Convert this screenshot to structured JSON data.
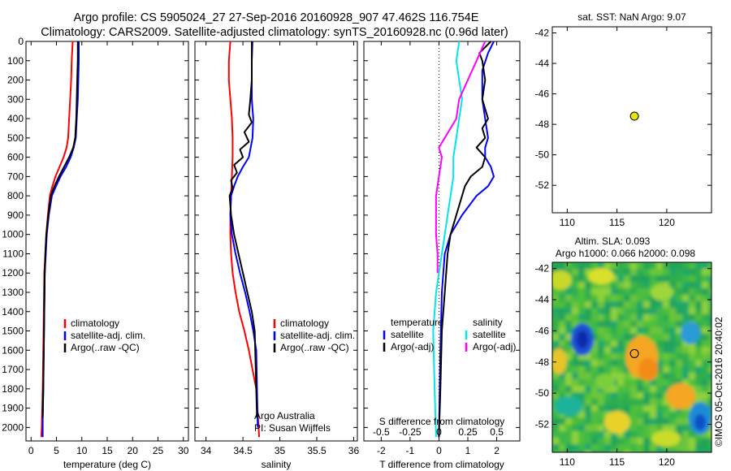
{
  "title_line1": "Argo profile: CS 5905024_27 27-Sep-2016 20160928_907 47.462S 116.754E",
  "title_line2": "Climatology: CARS2009. Satellite-adjusted climatology: synTS_20160928.nc (0.96d later)",
  "colors": {
    "climatology": "#ff0000",
    "satellite": "#0000ff",
    "argo": "#000000",
    "cyan": "#00e5ee",
    "magenta": "#ff00ff",
    "marker": "#e6e600"
  },
  "attribution": "Argo Australia",
  "pi": "PI: Susan Wijffels",
  "stamp": "©IMOS 05-Oct-2016 20:40:02",
  "chart_data": [
    {
      "type": "line",
      "panel": "temperature",
      "xlabel": "temperature (deg C)",
      "ylabel": "",
      "xlim": [
        -1,
        31
      ],
      "ylim": [
        2070,
        0
      ],
      "xticks": [
        0,
        5,
        10,
        15,
        20,
        25,
        30
      ],
      "yticks": [
        0,
        100,
        200,
        300,
        400,
        500,
        600,
        700,
        800,
        900,
        1000,
        1100,
        1200,
        1300,
        1400,
        1500,
        1600,
        1700,
        1800,
        1900,
        2000
      ],
      "legend": [
        "climatology",
        "satellite-adj. clim.",
        "Argo(..raw -QC)"
      ],
      "series": [
        {
          "name": "climatology",
          "color": "#ff0000",
          "x": [
            8.2,
            8.0,
            7.9,
            7.7,
            7.5,
            7.3,
            7.0,
            6.4,
            5.6,
            4.8,
            4.2,
            3.7,
            3.3,
            3.0,
            2.8,
            2.6,
            2.5,
            2.4,
            2.3,
            2.2,
            2.1,
            2.0
          ],
          "y": [
            0,
            100,
            200,
            300,
            400,
            500,
            550,
            600,
            650,
            700,
            750,
            800,
            900,
            1000,
            1100,
            1200,
            1400,
            1600,
            1800,
            1900,
            2000,
            2050
          ]
        },
        {
          "name": "satellite-adj. clim.",
          "color": "#0000ff",
          "x": [
            9.4,
            9.4,
            9.3,
            9.2,
            9.0,
            8.8,
            8.4,
            7.8,
            6.9,
            5.8,
            4.9,
            4.1,
            3.5,
            3.1,
            2.9,
            2.7,
            2.6,
            2.5,
            2.4,
            2.3,
            2.3
          ],
          "y": [
            0,
            100,
            200,
            300,
            400,
            500,
            550,
            600,
            650,
            700,
            750,
            800,
            900,
            1000,
            1100,
            1200,
            1400,
            1600,
            1800,
            1950,
            2050
          ]
        },
        {
          "name": "Argo(..raw -QC)",
          "color": "#000000",
          "x": [
            9.2,
            9.2,
            9.1,
            9.0,
            8.9,
            8.7,
            8.3,
            7.5,
            6.5,
            5.5,
            4.6,
            3.9,
            3.4,
            3.0,
            2.8,
            2.7,
            2.6,
            2.5,
            2.4,
            2.3
          ],
          "y": [
            0,
            100,
            200,
            300,
            400,
            500,
            550,
            600,
            650,
            700,
            750,
            800,
            900,
            1000,
            1100,
            1200,
            1400,
            1600,
            1800,
            1950
          ]
        }
      ]
    },
    {
      "type": "line",
      "panel": "salinity",
      "xlabel": "salinity",
      "xlim": [
        33.85,
        36.05
      ],
      "ylim": [
        2070,
        0
      ],
      "xticks": [
        34,
        34.5,
        35,
        35.5,
        36
      ],
      "legend": [
        "climatology",
        "satellite-adj. clim.",
        "Argo(..raw -QC)"
      ],
      "series": [
        {
          "name": "climatology",
          "color": "#ff0000",
          "x": [
            34.33,
            34.31,
            34.31,
            34.33,
            34.35,
            34.36,
            34.36,
            34.35,
            34.34,
            34.33,
            34.33,
            34.34,
            34.36,
            34.4,
            34.45,
            34.52,
            34.58,
            34.63,
            34.68,
            34.72
          ],
          "y": [
            0,
            100,
            200,
            300,
            400,
            500,
            600,
            700,
            800,
            900,
            1000,
            1100,
            1200,
            1300,
            1400,
            1500,
            1600,
            1700,
            1800,
            2050
          ]
        },
        {
          "name": "satellite-adj. clim.",
          "color": "#0000ff",
          "x": [
            34.63,
            34.62,
            34.62,
            34.62,
            34.64,
            34.63,
            34.58,
            34.5,
            34.43,
            34.38,
            34.34,
            34.33,
            34.35,
            34.4,
            34.46,
            34.53,
            34.59,
            34.64,
            34.68,
            34.7
          ],
          "y": [
            0,
            100,
            200,
            300,
            400,
            500,
            600,
            650,
            700,
            750,
            800,
            900,
            1000,
            1100,
            1200,
            1300,
            1400,
            1500,
            1600,
            2000
          ]
        },
        {
          "name": "Argo(..raw -QC)",
          "color": "#000000",
          "x": [
            34.62,
            34.62,
            34.62,
            34.6,
            34.58,
            34.62,
            34.52,
            34.58,
            34.46,
            34.5,
            34.38,
            34.42,
            34.34,
            34.36,
            34.32,
            34.33,
            34.34,
            34.38,
            34.44,
            34.5,
            34.56,
            34.62,
            34.66,
            34.69
          ],
          "y": [
            0,
            100,
            200,
            300,
            380,
            420,
            470,
            520,
            560,
            600,
            640,
            680,
            720,
            760,
            800,
            850,
            900,
            1000,
            1100,
            1200,
            1300,
            1400,
            1500,
            1950
          ]
        }
      ]
    },
    {
      "type": "line",
      "panel": "difference",
      "xlabel": "T difference from climatology",
      "xlabel_top": "S difference from climatology",
      "xlim": [
        -2.6,
        2.8
      ],
      "ylim": [
        2070,
        0
      ],
      "xticks": [
        -2,
        -1,
        0,
        1,
        2
      ],
      "xticks_top": [
        "-0.5",
        "-0.25",
        "0",
        "0.25",
        "0.5"
      ],
      "xticks_top_pos": [
        -2,
        -1,
        0,
        1,
        2
      ],
      "legend": [
        "temperature",
        "satellite",
        "Argo(-adj)",
        "salinity",
        "satellite",
        "Argo(-adj)"
      ],
      "series": [
        {
          "name": "temperature satellite",
          "color": "#0000ff",
          "x": [
            1.9,
            1.7,
            1.5,
            1.5,
            1.6,
            1.7,
            1.6,
            1.6,
            1.8,
            1.9,
            1.7,
            1.3,
            0.8,
            0.4,
            0.2,
            0.1,
            0.05,
            0.0
          ],
          "y": [
            0,
            60,
            150,
            300,
            400,
            500,
            550,
            600,
            650,
            700,
            750,
            800,
            900,
            1000,
            1100,
            1300,
            1600,
            2050
          ]
        },
        {
          "name": "temperature Argo(-adj)",
          "color": "#000000",
          "x": [
            1.8,
            1.4,
            1.5,
            1.6,
            1.5,
            1.7,
            1.5,
            1.6,
            1.3,
            1.6,
            1.5,
            1.1,
            0.9,
            0.8,
            0.6,
            0.4,
            0.3,
            0.2,
            0.1,
            0.05,
            0.0
          ],
          "y": [
            0,
            60,
            100,
            200,
            300,
            400,
            450,
            500,
            550,
            600,
            650,
            700,
            750,
            800,
            900,
            1000,
            1100,
            1300,
            1500,
            1800,
            2050
          ]
        },
        {
          "name": "salinity satellite",
          "color": "#00e5ee",
          "x": [
            0.7,
            0.6,
            0.7,
            0.8,
            0.7,
            0.6,
            0.5,
            0.5,
            0.4,
            0.3,
            0.2,
            0.1,
            -0.1,
            -0.2,
            -0.15,
            -0.1
          ],
          "y": [
            0,
            100,
            200,
            300,
            400,
            500,
            600,
            700,
            800,
            900,
            1000,
            1100,
            1300,
            1500,
            1800,
            2050
          ]
        },
        {
          "name": "salinity Argo(-adj)",
          "color": "#ff00ff",
          "x": [
            1.6,
            1.3,
            1.0,
            0.7,
            0.6,
            0.4,
            0.2,
            0.0,
            0.1,
            0.0,
            -0.1,
            -0.1,
            -0.05,
            -0.05
          ],
          "y": [
            0,
            100,
            200,
            300,
            400,
            450,
            500,
            550,
            600,
            700,
            800,
            1000,
            1100,
            1200
          ]
        }
      ]
    },
    {
      "type": "scatter",
      "panel": "sst_map",
      "title": "sat. SST: NaN Argo: 9.07",
      "xlim": [
        108.5,
        124.5
      ],
      "ylim": [
        -53.8,
        -41.6
      ],
      "xticks": [
        110,
        115,
        120
      ],
      "yticks": [
        -42,
        -44,
        -46,
        -48,
        -50,
        -52
      ],
      "points": [
        {
          "x": 116.754,
          "y": -47.462
        }
      ]
    },
    {
      "type": "heatmap",
      "panel": "sla_map",
      "title_line1": "Altim. SLA: 0.093",
      "title_line2": "Argo h1000: 0.066 h2000: 0.098",
      "xlim": [
        108.5,
        124.5
      ],
      "ylim": [
        -53.8,
        -41.6
      ],
      "xticks": [
        110,
        115,
        120
      ],
      "yticks": [
        -42,
        -44,
        -46,
        -48,
        -50,
        -52
      ],
      "points": [
        {
          "x": 116.754,
          "y": -47.462
        }
      ]
    }
  ]
}
